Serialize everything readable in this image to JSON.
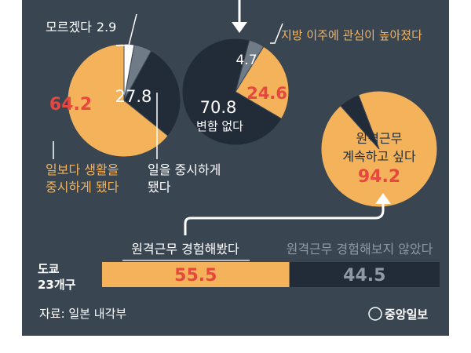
{
  "chart_data": [
    {
      "type": "pie",
      "title": "",
      "slices": [
        {
          "label": "모르겠다",
          "value": 2.9,
          "value_label": "2.9",
          "color": "#ffffff"
        },
        {
          "label": "",
          "value": 5.1,
          "color": "#6f7b86"
        },
        {
          "label": "일을 중시하게 됐다",
          "value": 27.8,
          "value_label": "27.8",
          "color": "#222c38"
        },
        {
          "label": "일보다 생활을 중시하게 됐다",
          "value": 64.2,
          "value_label": "64.2",
          "color": "#f4b35a"
        }
      ]
    },
    {
      "type": "pie",
      "title": "",
      "slices": [
        {
          "label": "",
          "value": 4.7,
          "value_label": "4.7",
          "color": "#6f7b86"
        },
        {
          "label": "지방 이주에 관심이 높아졌다",
          "value": 24.6,
          "value_label": "24.6",
          "color": "#f4b35a"
        },
        {
          "label": "변함 없다",
          "value": 70.8,
          "value_label": "70.8",
          "color": "#222c38"
        }
      ]
    },
    {
      "type": "pie",
      "title": "",
      "slices": [
        {
          "label": "원격근무 계속하고 싶다",
          "value": 94.2,
          "value_label": "94.2",
          "color": "#f4b35a"
        },
        {
          "label": "",
          "value": 5.8,
          "color": "#222c38"
        }
      ]
    },
    {
      "type": "bar",
      "orientation": "horizontal-stacked",
      "category": "도쿄 23개구",
      "series": [
        {
          "name": "원격근무 경험해봤다",
          "value": 55.5,
          "value_label": "55.5",
          "color": "#f4b35a"
        },
        {
          "name": "원격근무 경험해보지 않았다",
          "value": 44.5,
          "value_label": "44.5",
          "color": "#222c38"
        }
      ]
    }
  ],
  "text": {
    "unknown_label": "모르겠다",
    "unknown_value": "2.9",
    "life_label_1": "일보다 생활을",
    "life_label_2": "중시하게 됐다",
    "work_label_1": "일을 중시하게",
    "work_label_2": "됐다",
    "relocate_label": "지방 이주에 관심이 높아졌다",
    "nochange_label": "변함 없다",
    "continue_label_1": "원격근무",
    "continue_label_2": "계속하고 싶다",
    "bar_category_1": "도쿄",
    "bar_category_2": "23개구",
    "experienced_label": "원격근무 경험해봤다",
    "not_experienced_label": "원격근무 경험해보지 않았다",
    "source": "자료: 일본 내각부",
    "logo": "중앙일보"
  },
  "colors": {
    "background": "#3a4552",
    "orange": "#f4b35a",
    "dark": "#222c38",
    "gray": "#6f7b86",
    "red_value": "#e8473f",
    "label_orange": "#f4b35a",
    "muted_text": "#8e99a4",
    "white": "#ffffff"
  }
}
